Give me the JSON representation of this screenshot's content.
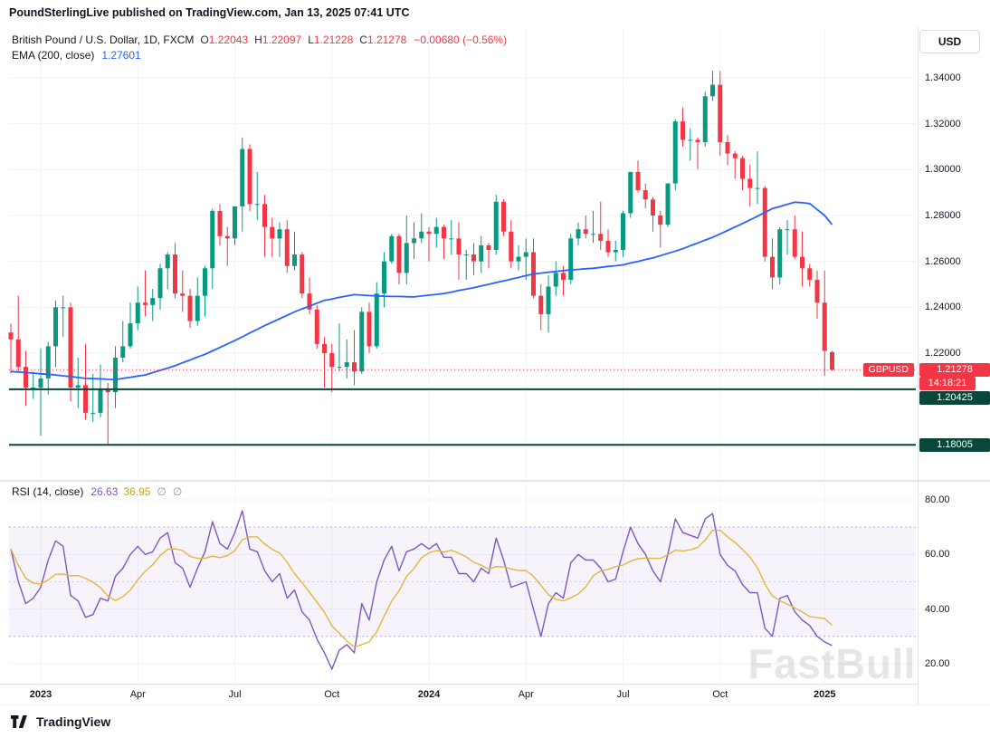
{
  "header": {
    "publish_info": "PoundSterlingLive published on TradingView.com, Jan 13, 2025 07:41 UTC"
  },
  "legend": {
    "symbol_title": "British Pound / U.S. Dollar, 1D, FXCM",
    "ohlc": {
      "o_label": "O",
      "o": "1.22043",
      "h_label": "H",
      "h": "1.22097",
      "l_label": "L",
      "l": "1.21228",
      "c_label": "C",
      "c": "1.21278",
      "change": "−0.00680 (−0.56%)"
    },
    "ema_label": "EMA (200, close)",
    "ema_value": "1.27601"
  },
  "rsi_legend": {
    "label": "RSI (14, close)",
    "value": "26.63",
    "ma_value": "36.95",
    "icon": "∅"
  },
  "toolbar": {
    "currency_button": "USD"
  },
  "badges": {
    "symbol": "GBPUSD",
    "last_price": "1.21278",
    "last_price_value": 1.21278,
    "countdown": "14:18:21",
    "levels": [
      {
        "label": "1.20425",
        "value": 1.20425
      },
      {
        "label": "1.18005",
        "value": 1.18005
      }
    ]
  },
  "time_axis": {
    "ticks": [
      {
        "label": "2023",
        "week": 4,
        "major": true
      },
      {
        "label": "Apr",
        "week": 17,
        "major": false
      },
      {
        "label": "Jul",
        "week": 30,
        "major": false
      },
      {
        "label": "Oct",
        "week": 43,
        "major": false
      },
      {
        "label": "2024",
        "week": 56,
        "major": true
      },
      {
        "label": "Apr",
        "week": 69,
        "major": false
      },
      {
        "label": "Jul",
        "week": 82,
        "major": false
      },
      {
        "label": "Oct",
        "week": 95,
        "major": false
      },
      {
        "label": "2025",
        "week": 109,
        "major": true
      }
    ]
  },
  "watermark": "FastBull",
  "footer": {
    "brand": "TradingView"
  },
  "colors": {
    "up": "#089981",
    "down": "#f23645",
    "ema": "#2962ff",
    "grid": "#f0f3fa",
    "axis_text": "#131722",
    "last_price": "#f23645",
    "level": "#0a4639",
    "rsi": "#7e57c2",
    "rsi_ma": "#e3b63c",
    "band_fill": "rgba(126,87,194,0.07)",
    "band_edge": "rgba(126,87,194,0.5)",
    "band_mid": "rgba(126,87,194,0.3)"
  },
  "chart_data": [
    {
      "type": "candlestick",
      "title": "British Pound / U.S. Dollar, 1D, FXCM",
      "symbol": "GBPUSD",
      "timeframe": "1D",
      "exchange": "FXCM",
      "note": "bars approximated at weekly resolution, index 0 = left edge",
      "ylim": [
        1.165,
        1.3625
      ],
      "axis_ticks": [
        {
          "label": "1.34000",
          "value": 1.34
        },
        {
          "label": "1.32000",
          "value": 1.32
        },
        {
          "label": "1.30000",
          "value": 1.3
        },
        {
          "label": "1.28000",
          "value": 1.28
        },
        {
          "label": "1.26000",
          "value": 1.26
        },
        {
          "label": "1.24000",
          "value": 1.24
        },
        {
          "label": "1.22000",
          "value": 1.22
        }
      ],
      "candles": [
        [
          1.229,
          1.233,
          1.211,
          1.226
        ],
        [
          1.226,
          1.245,
          1.212,
          1.214
        ],
        [
          1.214,
          1.221,
          1.197,
          1.205
        ],
        [
          1.205,
          1.212,
          1.2,
          1.205
        ],
        [
          1.205,
          1.222,
          1.184,
          1.209
        ],
        [
          1.209,
          1.225,
          1.202,
          1.223
        ],
        [
          1.223,
          1.243,
          1.214,
          1.24
        ],
        [
          1.24,
          1.245,
          1.227,
          1.24
        ],
        [
          1.24,
          1.242,
          1.199,
          1.205
        ],
        [
          1.205,
          1.218,
          1.196,
          1.206
        ],
        [
          1.206,
          1.224,
          1.191,
          1.194
        ],
        [
          1.194,
          1.211,
          1.19,
          1.194
        ],
        [
          1.194,
          1.215,
          1.192,
          1.204
        ],
        [
          1.204,
          1.207,
          1.18,
          1.203
        ],
        [
          1.203,
          1.223,
          1.196,
          1.218
        ],
        [
          1.218,
          1.234,
          1.216,
          1.223
        ],
        [
          1.223,
          1.242,
          1.222,
          1.233
        ],
        [
          1.233,
          1.249,
          1.23,
          1.242
        ],
        [
          1.242,
          1.256,
          1.236,
          1.241
        ],
        [
          1.241,
          1.248,
          1.234,
          1.244
        ],
        [
          1.244,
          1.259,
          1.239,
          1.257
        ],
        [
          1.257,
          1.264,
          1.248,
          1.263
        ],
        [
          1.263,
          1.268,
          1.244,
          1.246
        ],
        [
          1.246,
          1.256,
          1.238,
          1.245
        ],
        [
          1.245,
          1.248,
          1.231,
          1.234
        ],
        [
          1.234,
          1.253,
          1.232,
          1.245
        ],
        [
          1.245,
          1.258,
          1.236,
          1.257
        ],
        [
          1.257,
          1.283,
          1.248,
          1.282
        ],
        [
          1.282,
          1.285,
          1.267,
          1.271
        ],
        [
          1.271,
          1.275,
          1.258,
          1.27
        ],
        [
          1.27,
          1.284,
          1.267,
          1.284
        ],
        [
          1.284,
          1.314,
          1.273,
          1.309
        ],
        [
          1.309,
          1.311,
          1.282,
          1.285
        ],
        [
          1.285,
          1.299,
          1.278,
          1.285
        ],
        [
          1.285,
          1.289,
          1.262,
          1.275
        ],
        [
          1.275,
          1.279,
          1.262,
          1.27
        ],
        [
          1.27,
          1.277,
          1.262,
          1.274
        ],
        [
          1.274,
          1.278,
          1.255,
          1.258
        ],
        [
          1.258,
          1.273,
          1.256,
          1.263
        ],
        [
          1.263,
          1.264,
          1.244,
          1.246
        ],
        [
          1.246,
          1.253,
          1.237,
          1.239
        ],
        [
          1.239,
          1.241,
          1.222,
          1.224
        ],
        [
          1.224,
          1.227,
          1.205,
          1.22
        ],
        [
          1.22,
          1.224,
          1.203,
          1.214
        ],
        [
          1.214,
          1.233,
          1.212,
          1.214
        ],
        [
          1.214,
          1.226,
          1.209,
          1.216
        ],
        [
          1.216,
          1.23,
          1.206,
          1.212
        ],
        [
          1.212,
          1.24,
          1.211,
          1.238
        ],
        [
          1.238,
          1.242,
          1.22,
          1.223
        ],
        [
          1.223,
          1.251,
          1.222,
          1.246
        ],
        [
          1.246,
          1.264,
          1.24,
          1.26
        ],
        [
          1.26,
          1.272,
          1.259,
          1.271
        ],
        [
          1.271,
          1.272,
          1.25,
          1.255
        ],
        [
          1.255,
          1.28,
          1.25,
          1.268
        ],
        [
          1.268,
          1.277,
          1.261,
          1.27
        ],
        [
          1.27,
          1.281,
          1.268,
          1.273
        ],
        [
          1.273,
          1.275,
          1.26,
          1.272
        ],
        [
          1.272,
          1.279,
          1.266,
          1.275
        ],
        [
          1.275,
          1.276,
          1.261,
          1.27
        ],
        [
          1.27,
          1.278,
          1.263,
          1.27
        ],
        [
          1.27,
          1.277,
          1.252,
          1.263
        ],
        [
          1.263,
          1.265,
          1.252,
          1.263
        ],
        [
          1.263,
          1.268,
          1.254,
          1.26
        ],
        [
          1.26,
          1.271,
          1.255,
          1.267
        ],
        [
          1.267,
          1.268,
          1.257,
          1.265
        ],
        [
          1.265,
          1.289,
          1.263,
          1.286
        ],
        [
          1.286,
          1.287,
          1.271,
          1.273
        ],
        [
          1.273,
          1.278,
          1.257,
          1.26
        ],
        [
          1.26,
          1.267,
          1.256,
          1.262
        ],
        [
          1.262,
          1.27,
          1.252,
          1.264
        ],
        [
          1.264,
          1.27,
          1.244,
          1.245
        ],
        [
          1.245,
          1.25,
          1.23,
          1.237
        ],
        [
          1.237,
          1.254,
          1.229,
          1.249
        ],
        [
          1.249,
          1.26,
          1.245,
          1.255
        ],
        [
          1.255,
          1.258,
          1.245,
          1.252
        ],
        [
          1.252,
          1.272,
          1.25,
          1.27
        ],
        [
          1.27,
          1.277,
          1.267,
          1.274
        ],
        [
          1.274,
          1.28,
          1.27,
          1.272
        ],
        [
          1.272,
          1.282,
          1.268,
          1.272
        ],
        [
          1.272,
          1.286,
          1.265,
          1.269
        ],
        [
          1.269,
          1.274,
          1.262,
          1.264
        ],
        [
          1.264,
          1.269,
          1.26,
          1.265
        ],
        [
          1.265,
          1.282,
          1.262,
          1.281
        ],
        [
          1.281,
          1.299,
          1.279,
          1.299
        ],
        [
          1.299,
          1.304,
          1.29,
          1.291
        ],
        [
          1.291,
          1.294,
          1.283,
          1.287
        ],
        [
          1.287,
          1.288,
          1.273,
          1.28
        ],
        [
          1.28,
          1.282,
          1.266,
          1.276
        ],
        [
          1.276,
          1.294,
          1.275,
          1.294
        ],
        [
          1.294,
          1.322,
          1.291,
          1.321
        ],
        [
          1.321,
          1.327,
          1.31,
          1.313
        ],
        [
          1.313,
          1.318,
          1.304,
          1.313
        ],
        [
          1.313,
          1.314,
          1.3,
          1.312
        ],
        [
          1.312,
          1.334,
          1.31,
          1.332
        ],
        [
          1.332,
          1.343,
          1.33,
          1.337
        ],
        [
          1.337,
          1.343,
          1.306,
          1.312
        ],
        [
          1.312,
          1.315,
          1.302,
          1.307
        ],
        [
          1.307,
          1.308,
          1.296,
          1.305
        ],
        [
          1.305,
          1.306,
          1.291,
          1.296
        ],
        [
          1.296,
          1.302,
          1.284,
          1.292
        ],
        [
          1.292,
          1.308,
          1.285,
          1.292
        ],
        [
          1.292,
          1.293,
          1.26,
          1.262
        ],
        [
          1.262,
          1.27,
          1.248,
          1.253
        ],
        [
          1.253,
          1.275,
          1.25,
          1.274
        ],
        [
          1.274,
          1.278,
          1.263,
          1.274
        ],
        [
          1.274,
          1.28,
          1.261,
          1.262
        ],
        [
          1.262,
          1.273,
          1.249,
          1.257
        ],
        [
          1.257,
          1.259,
          1.249,
          1.252
        ],
        [
          1.252,
          1.256,
          1.235,
          1.242
        ],
        [
          1.242,
          1.256,
          1.21,
          1.221
        ],
        [
          1.22043,
          1.22097,
          1.21228,
          1.21278
        ]
      ],
      "series": [
        {
          "name": "EMA (200, close)",
          "last_value": 1.27601,
          "values": [
            1.212,
            1.2118,
            1.2115,
            1.2113,
            1.211,
            1.2108,
            1.2105,
            1.2101,
            1.2098,
            1.2094,
            1.209,
            1.2089,
            1.2088,
            1.2086,
            1.2085,
            1.209,
            1.2095,
            1.21,
            1.2105,
            1.2115,
            1.2125,
            1.2135,
            1.2145,
            1.2158,
            1.217,
            1.2183,
            1.2195,
            1.221,
            1.2225,
            1.224,
            1.2255,
            1.2271,
            1.2288,
            1.2304,
            1.232,
            1.2335,
            1.235,
            1.2365,
            1.238,
            1.2393,
            1.2405,
            1.2418,
            1.243,
            1.2436,
            1.2443,
            1.2449,
            1.2455,
            1.2453,
            1.2451,
            1.245,
            1.2448,
            1.2447,
            1.2447,
            1.2446,
            1.2445,
            1.2449,
            1.2453,
            1.2456,
            1.246,
            1.2466,
            1.2473,
            1.2479,
            1.2485,
            1.2493,
            1.25,
            1.2508,
            1.2515,
            1.2523,
            1.253,
            1.2538,
            1.2545,
            1.2549,
            1.2553,
            1.2556,
            1.256,
            1.2563,
            1.2565,
            1.2568,
            1.257,
            1.2574,
            1.2578,
            1.2581,
            1.2585,
            1.2593,
            1.26,
            1.2608,
            1.2615,
            1.2625,
            1.2635,
            1.2645,
            1.2655,
            1.2668,
            1.268,
            1.2693,
            1.2705,
            1.272,
            1.2735,
            1.275,
            1.2765,
            1.2781,
            1.2797,
            1.2814,
            1.283,
            1.2839,
            1.2849,
            1.2858,
            1.2856,
            1.2852,
            1.2826,
            1.28,
            1.276
          ]
        }
      ],
      "levels": [
        {
          "value": 1.21278,
          "label": "1.21278",
          "style": "dotted",
          "role": "last-price"
        },
        {
          "value": 1.20425,
          "label": "1.20425",
          "style": "solid",
          "role": "support"
        },
        {
          "value": 1.18005,
          "label": "1.18005",
          "style": "solid",
          "role": "support"
        }
      ]
    },
    {
      "type": "line",
      "title": "RSI (14, close)",
      "ylim": [
        12.7,
        85.6
      ],
      "bands": {
        "upper": 70,
        "middle": 50,
        "lower": 30
      },
      "axis_ticks": [
        {
          "label": "80.00",
          "value": 80
        },
        {
          "label": "60.00",
          "value": 60
        },
        {
          "label": "40.00",
          "value": 40
        },
        {
          "label": "20.00",
          "value": 20
        }
      ],
      "series": [
        {
          "name": "RSI",
          "last_value": 26.63,
          "values": [
            62,
            50,
            42,
            44,
            48,
            58,
            65,
            63,
            45,
            43,
            37,
            38,
            44,
            43,
            52,
            55,
            60,
            63,
            60,
            61,
            66,
            68,
            57,
            55,
            48,
            55,
            61,
            72,
            64,
            62,
            68,
            76,
            62,
            61,
            54,
            50,
            53,
            44,
            47,
            39,
            36,
            29,
            24,
            18,
            25,
            27,
            24,
            42,
            36,
            50,
            58,
            63,
            54,
            61,
            62,
            64,
            62,
            64,
            59,
            59,
            53,
            53,
            50,
            55,
            53,
            66,
            58,
            48,
            49,
            50,
            40,
            30,
            42,
            46,
            44,
            57,
            60,
            58,
            58,
            55,
            50,
            51,
            61,
            70,
            64,
            60,
            54,
            50,
            60,
            73,
            68,
            67,
            66,
            73,
            75,
            60,
            56,
            54,
            49,
            46,
            46,
            33,
            30,
            44,
            45,
            39,
            36,
            34,
            30,
            28,
            26.63
          ]
        },
        {
          "name": "RSI-based MA",
          "last_value": 36.95,
          "derived": "SMA of RSI",
          "window": 7
        }
      ]
    }
  ]
}
